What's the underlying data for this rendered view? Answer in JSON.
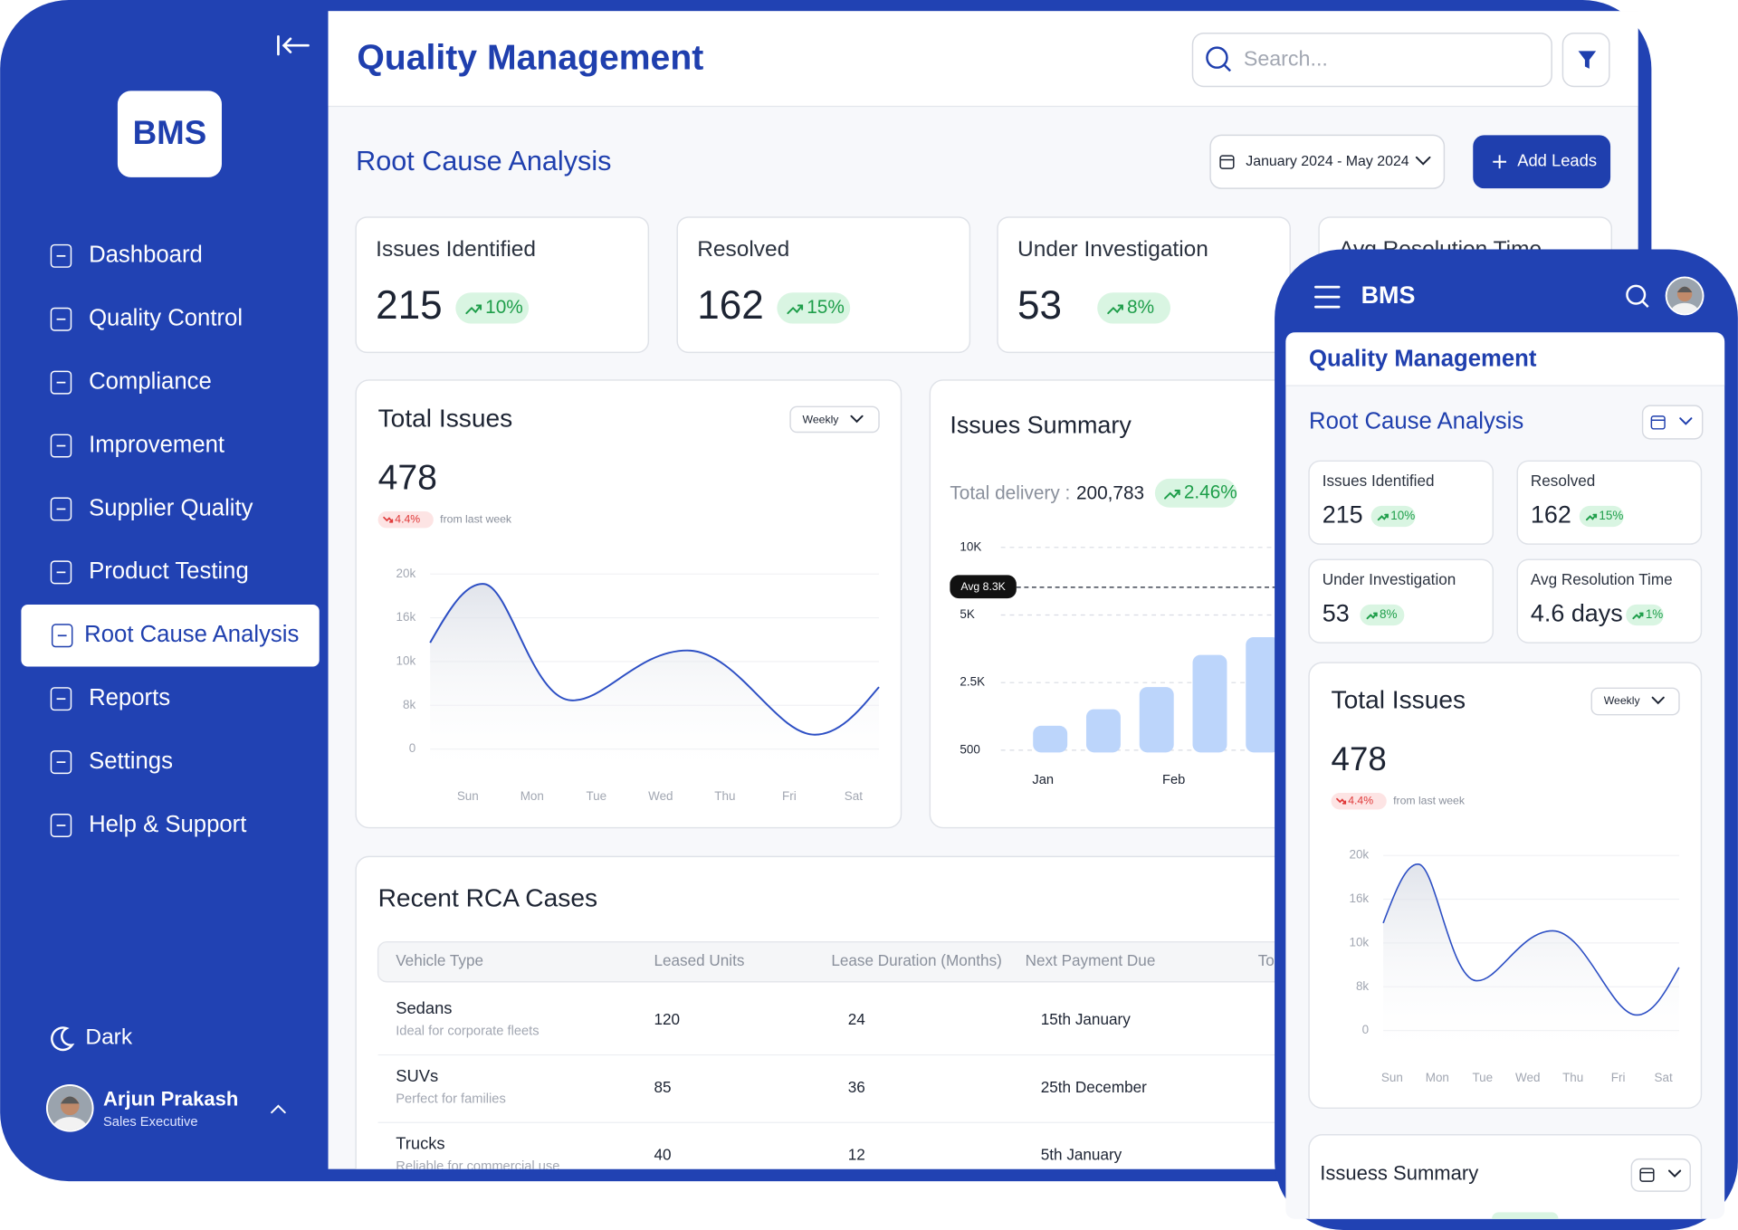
{
  "sidebar": {
    "logo": "BMS",
    "nav": [
      "Dashboard",
      "Quality Control",
      "Compliance",
      "Improvement",
      "Supplier Quality",
      "Product Testing",
      "Root Cause Analysis",
      "Reports",
      "Settings",
      "Help & Support"
    ],
    "theme_toggle": "Dark",
    "user": {
      "name": "Arjun Prakash",
      "role": "Sales Executive"
    }
  },
  "header": {
    "title": "Quality Management",
    "search_placeholder": "Search..."
  },
  "page": {
    "title": "Root Cause Analysis",
    "date_range": "January 2024 - May 2024",
    "add_button": "Add Leads"
  },
  "kpis": [
    {
      "label": "Issues Identified",
      "value": 215,
      "change": "10%"
    },
    {
      "label": "Resolved",
      "value": 162,
      "change": "15%"
    },
    {
      "label": "Under Investigation",
      "value": 53,
      "change": "8%"
    },
    {
      "label": "Avg Resolution Time",
      "value": "4.6 days",
      "change": "1%"
    }
  ],
  "total_issues": {
    "title": "Total Issues",
    "period": "Weekly",
    "value": 478,
    "change": "4.4%",
    "change_note": "from last week",
    "yticks": [
      "20k",
      "16k",
      "10k",
      "8k",
      "0"
    ],
    "days": [
      "Sun",
      "Mon",
      "Tue",
      "Wed",
      "Thu",
      "Fri",
      "Sat"
    ]
  },
  "issues_summary": {
    "title": "Issues Summary",
    "total_label": "Total delivery :",
    "total_value": "200,783",
    "change": "2.46%",
    "yticks": [
      "10K",
      "5K",
      "2.5K",
      "500"
    ],
    "avg_label": "Avg 8.3K",
    "months": [
      "Jan",
      "Feb"
    ]
  },
  "recent_cases": {
    "title": "Recent RCA Cases",
    "columns": [
      "Vehicle Type",
      "Leased Units",
      "Lease Duration (Months)",
      "Next Payment Due",
      "To"
    ],
    "rows": [
      {
        "type": "Sedans",
        "note": "Ideal for corporate fleets",
        "units": 120,
        "duration": 24,
        "due": "15th January"
      },
      {
        "type": "SUVs",
        "note": "Perfect for families",
        "units": 85,
        "duration": 36,
        "due": "25th December"
      },
      {
        "type": "Trucks",
        "note": "Reliable for commercial use",
        "units": 40,
        "duration": 12,
        "due": "5th January"
      }
    ]
  },
  "mobile": {
    "summary_title": "Issuess Summary"
  }
}
